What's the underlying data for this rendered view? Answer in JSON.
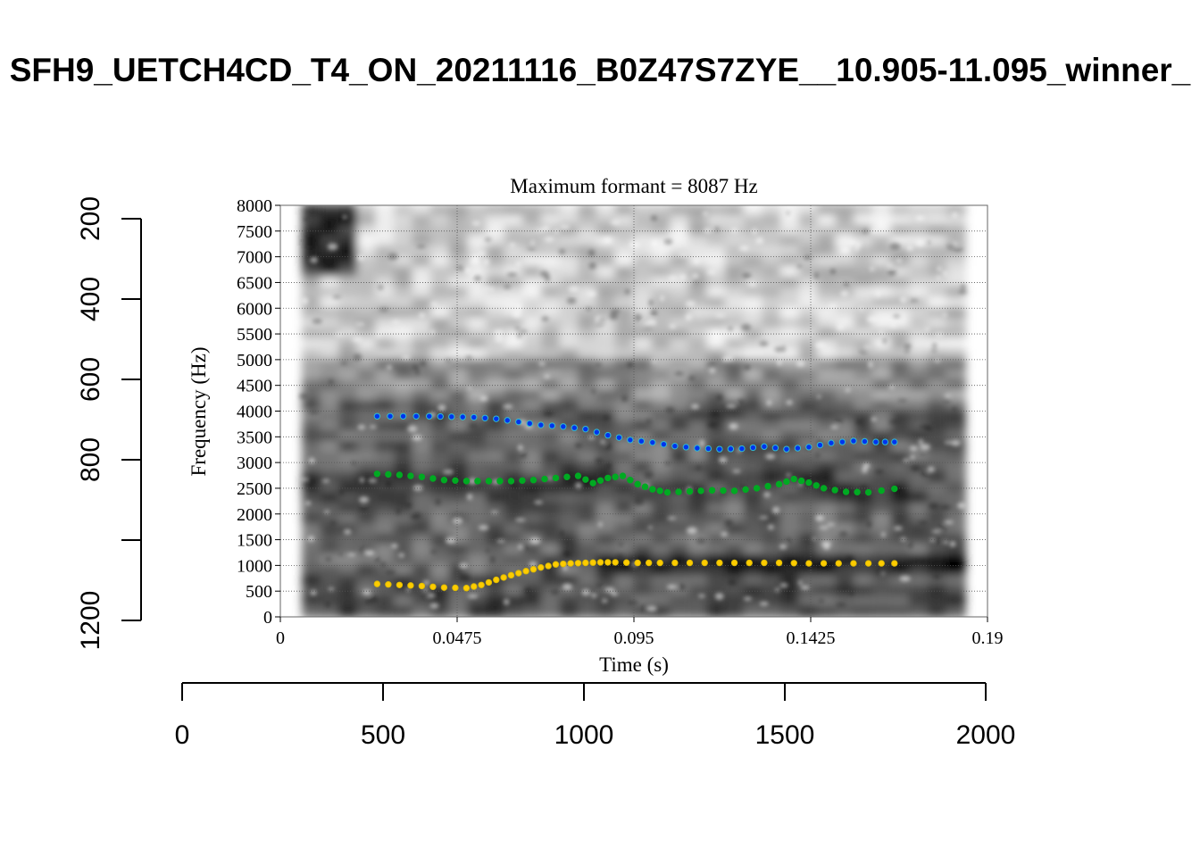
{
  "figure_title": "SFH9_UETCH4CD_T4_ON_20211116_B0Z47S7ZYE__10.905-11.095_winner_",
  "chart_data": [
    {
      "type": "scatter",
      "title": "Maximum formant = 8087 Hz",
      "xlabel": "Time (s)",
      "ylabel": "Frequency (Hz)",
      "xlim": [
        0,
        0.19
      ],
      "ylim": [
        0,
        8000
      ],
      "x_ticks": [
        "0",
        "0.0475",
        "0.095",
        "0.1425",
        "0.19"
      ],
      "y_ticks": [
        "0",
        "500",
        "1000",
        "1500",
        "2000",
        "2500",
        "3000",
        "3500",
        "4000",
        "4500",
        "5000",
        "5500",
        "6000",
        "6500",
        "7000",
        "7500",
        "8000"
      ],
      "grid": true,
      "background": "grayscale spectrogram",
      "spectrogram_extent_s": [
        0.006,
        0.184
      ],
      "series": [
        {
          "color": "#0033ee",
          "open_color": "#33bbcc",
          "x": [
            0.026,
            0.033,
            0.04,
            0.046,
            0.052,
            0.058,
            0.064,
            0.07,
            0.076,
            0.082,
            0.088,
            0.094,
            0.1,
            0.106,
            0.112,
            0.118,
            0.124,
            0.13,
            0.136,
            0.142,
            0.148,
            0.154,
            0.16,
            0.165
          ],
          "y": [
            3900,
            3900,
            3900,
            3890,
            3880,
            3850,
            3790,
            3730,
            3700,
            3650,
            3530,
            3440,
            3390,
            3320,
            3280,
            3260,
            3270,
            3310,
            3260,
            3300,
            3380,
            3420,
            3400,
            3400
          ]
        },
        {
          "color": "#00aa22",
          "open_color": "#00aa22",
          "x": [
            0.026,
            0.032,
            0.038,
            0.044,
            0.05,
            0.056,
            0.062,
            0.068,
            0.074,
            0.08,
            0.084,
            0.088,
            0.092,
            0.096,
            0.1,
            0.104,
            0.11,
            0.116,
            0.122,
            0.128,
            0.134,
            0.138,
            0.142,
            0.146,
            0.152,
            0.158,
            0.165
          ],
          "y": [
            2780,
            2760,
            2720,
            2660,
            2640,
            2640,
            2640,
            2660,
            2700,
            2740,
            2600,
            2700,
            2740,
            2580,
            2480,
            2420,
            2440,
            2460,
            2450,
            2500,
            2580,
            2680,
            2610,
            2500,
            2430,
            2420,
            2490
          ]
        },
        {
          "color": "#ffcc00",
          "open_color": "#ddbb00",
          "x": [
            0.026,
            0.032,
            0.038,
            0.044,
            0.05,
            0.054,
            0.058,
            0.062,
            0.066,
            0.07,
            0.074,
            0.078,
            0.082,
            0.086,
            0.09,
            0.096,
            0.102,
            0.11,
            0.118,
            0.126,
            0.134,
            0.142,
            0.15,
            0.158,
            0.165
          ],
          "y": [
            640,
            620,
            600,
            570,
            560,
            620,
            720,
            810,
            890,
            960,
            1020,
            1040,
            1050,
            1060,
            1060,
            1050,
            1050,
            1050,
            1050,
            1050,
            1050,
            1040,
            1040,
            1040,
            1040
          ]
        }
      ]
    },
    {
      "type": "scatter",
      "x_ticks": [
        "0",
        "500",
        "1000",
        "1500",
        "2000"
      ],
      "y_ticks": [
        "200",
        "400",
        "600",
        "800",
        "1200"
      ],
      "xlim": [
        0,
        2000
      ],
      "ylim": [
        1200,
        200
      ]
    }
  ]
}
